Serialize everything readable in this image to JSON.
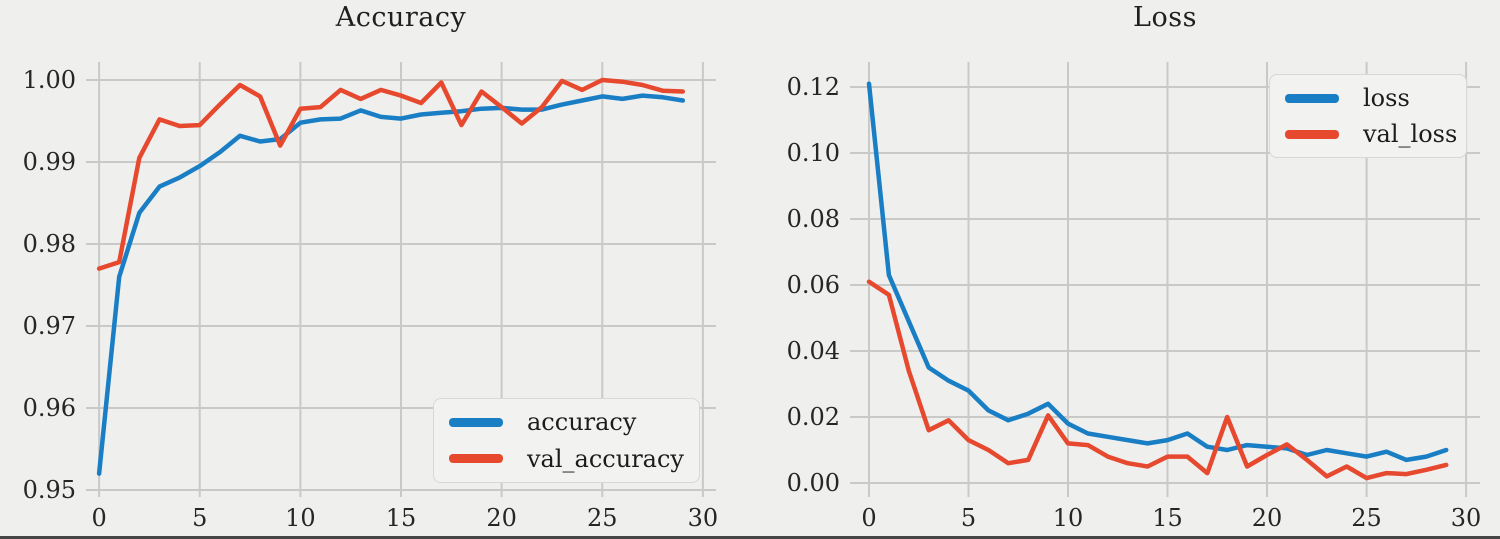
{
  "colors": {
    "blue": "#1a7ec5",
    "red": "#e6492e",
    "grid": "#c9c9c8",
    "text": "#262626",
    "background": "#efefee",
    "legend_background": "#f2f2f0",
    "legend_border": "#d8d8d5",
    "bottom_edge": "#454545"
  },
  "chart_data": [
    {
      "type": "line",
      "title": "Accuracy",
      "grid": true,
      "legend_position": "bottom-right",
      "xlim": [
        -0.65,
        30.65
      ],
      "ylim": [
        0.94915,
        1.0022
      ],
      "xticks": [
        0,
        5,
        10,
        15,
        20,
        25,
        30
      ],
      "xtick_labels": [
        "0",
        "5",
        "10",
        "15",
        "20",
        "25",
        "30"
      ],
      "yticks": [
        0.95,
        0.96,
        0.97,
        0.98,
        0.99,
        1.0
      ],
      "ytick_labels": [
        "0.95",
        "0.96",
        "0.97",
        "0.98",
        "0.99",
        "1.00"
      ],
      "x": [
        0,
        1,
        2,
        3,
        4,
        5,
        6,
        7,
        8,
        9,
        10,
        11,
        12,
        13,
        14,
        15,
        16,
        17,
        18,
        19,
        20,
        21,
        22,
        23,
        24,
        25,
        26,
        27,
        28,
        29
      ],
      "series": [
        {
          "name": "accuracy",
          "color_key": "blue",
          "values": [
            0.952,
            0.976,
            0.9838,
            0.987,
            0.9881,
            0.9895,
            0.9912,
            0.9932,
            0.9925,
            0.9928,
            0.9948,
            0.9952,
            0.9953,
            0.9963,
            0.9955,
            0.9953,
            0.9958,
            0.996,
            0.9962,
            0.9965,
            0.9966,
            0.9964,
            0.9964,
            0.997,
            0.9975,
            0.998,
            0.9977,
            0.9981,
            0.9979,
            0.9975
          ]
        },
        {
          "name": "val_accuracy",
          "color_key": "red",
          "values": [
            0.977,
            0.9778,
            0.9905,
            0.9952,
            0.9944,
            0.9945,
            0.997,
            0.9994,
            0.998,
            0.992,
            0.9965,
            0.9967,
            0.9988,
            0.9977,
            0.9988,
            0.9981,
            0.9972,
            0.9997,
            0.9945,
            0.9986,
            0.9967,
            0.9947,
            0.9967,
            0.9999,
            0.9988,
            1.0,
            0.9998,
            0.9994,
            0.9987,
            0.9986
          ]
        }
      ]
    },
    {
      "type": "line",
      "title": "Loss",
      "grid": true,
      "legend_position": "top-right",
      "xlim": [
        -0.955,
        30.7
      ],
      "ylim": [
        -0.00424,
        0.12758
      ],
      "xticks": [
        0,
        5,
        10,
        15,
        20,
        25,
        30
      ],
      "xtick_labels": [
        "0",
        "5",
        "10",
        "15",
        "20",
        "25",
        "30"
      ],
      "yticks": [
        0.0,
        0.02,
        0.04,
        0.06,
        0.08,
        0.1,
        0.12
      ],
      "ytick_labels": [
        "0.00",
        "0.02",
        "0.04",
        "0.06",
        "0.08",
        "0.10",
        "0.12"
      ],
      "x": [
        0,
        1,
        2,
        3,
        4,
        5,
        6,
        7,
        8,
        9,
        10,
        11,
        12,
        13,
        14,
        15,
        16,
        17,
        18,
        19,
        20,
        21,
        22,
        23,
        24,
        25,
        26,
        27,
        28,
        29
      ],
      "series": [
        {
          "name": "loss",
          "color_key": "blue",
          "values": [
            0.121,
            0.063,
            0.049,
            0.035,
            0.031,
            0.028,
            0.022,
            0.019,
            0.021,
            0.024,
            0.018,
            0.015,
            0.014,
            0.013,
            0.012,
            0.013,
            0.015,
            0.011,
            0.01,
            0.0115,
            0.011,
            0.0105,
            0.0085,
            0.01,
            0.009,
            0.008,
            0.0095,
            0.007,
            0.008,
            0.01
          ]
        },
        {
          "name": "val_loss",
          "color_key": "red",
          "values": [
            0.061,
            0.057,
            0.034,
            0.016,
            0.019,
            0.013,
            0.01,
            0.006,
            0.007,
            0.0205,
            0.012,
            0.0115,
            0.008,
            0.006,
            0.005,
            0.008,
            0.008,
            0.003,
            0.02,
            0.005,
            0.0085,
            0.0117,
            0.007,
            0.002,
            0.005,
            0.0015,
            0.003,
            0.0027,
            0.004,
            0.0055
          ]
        }
      ]
    }
  ]
}
